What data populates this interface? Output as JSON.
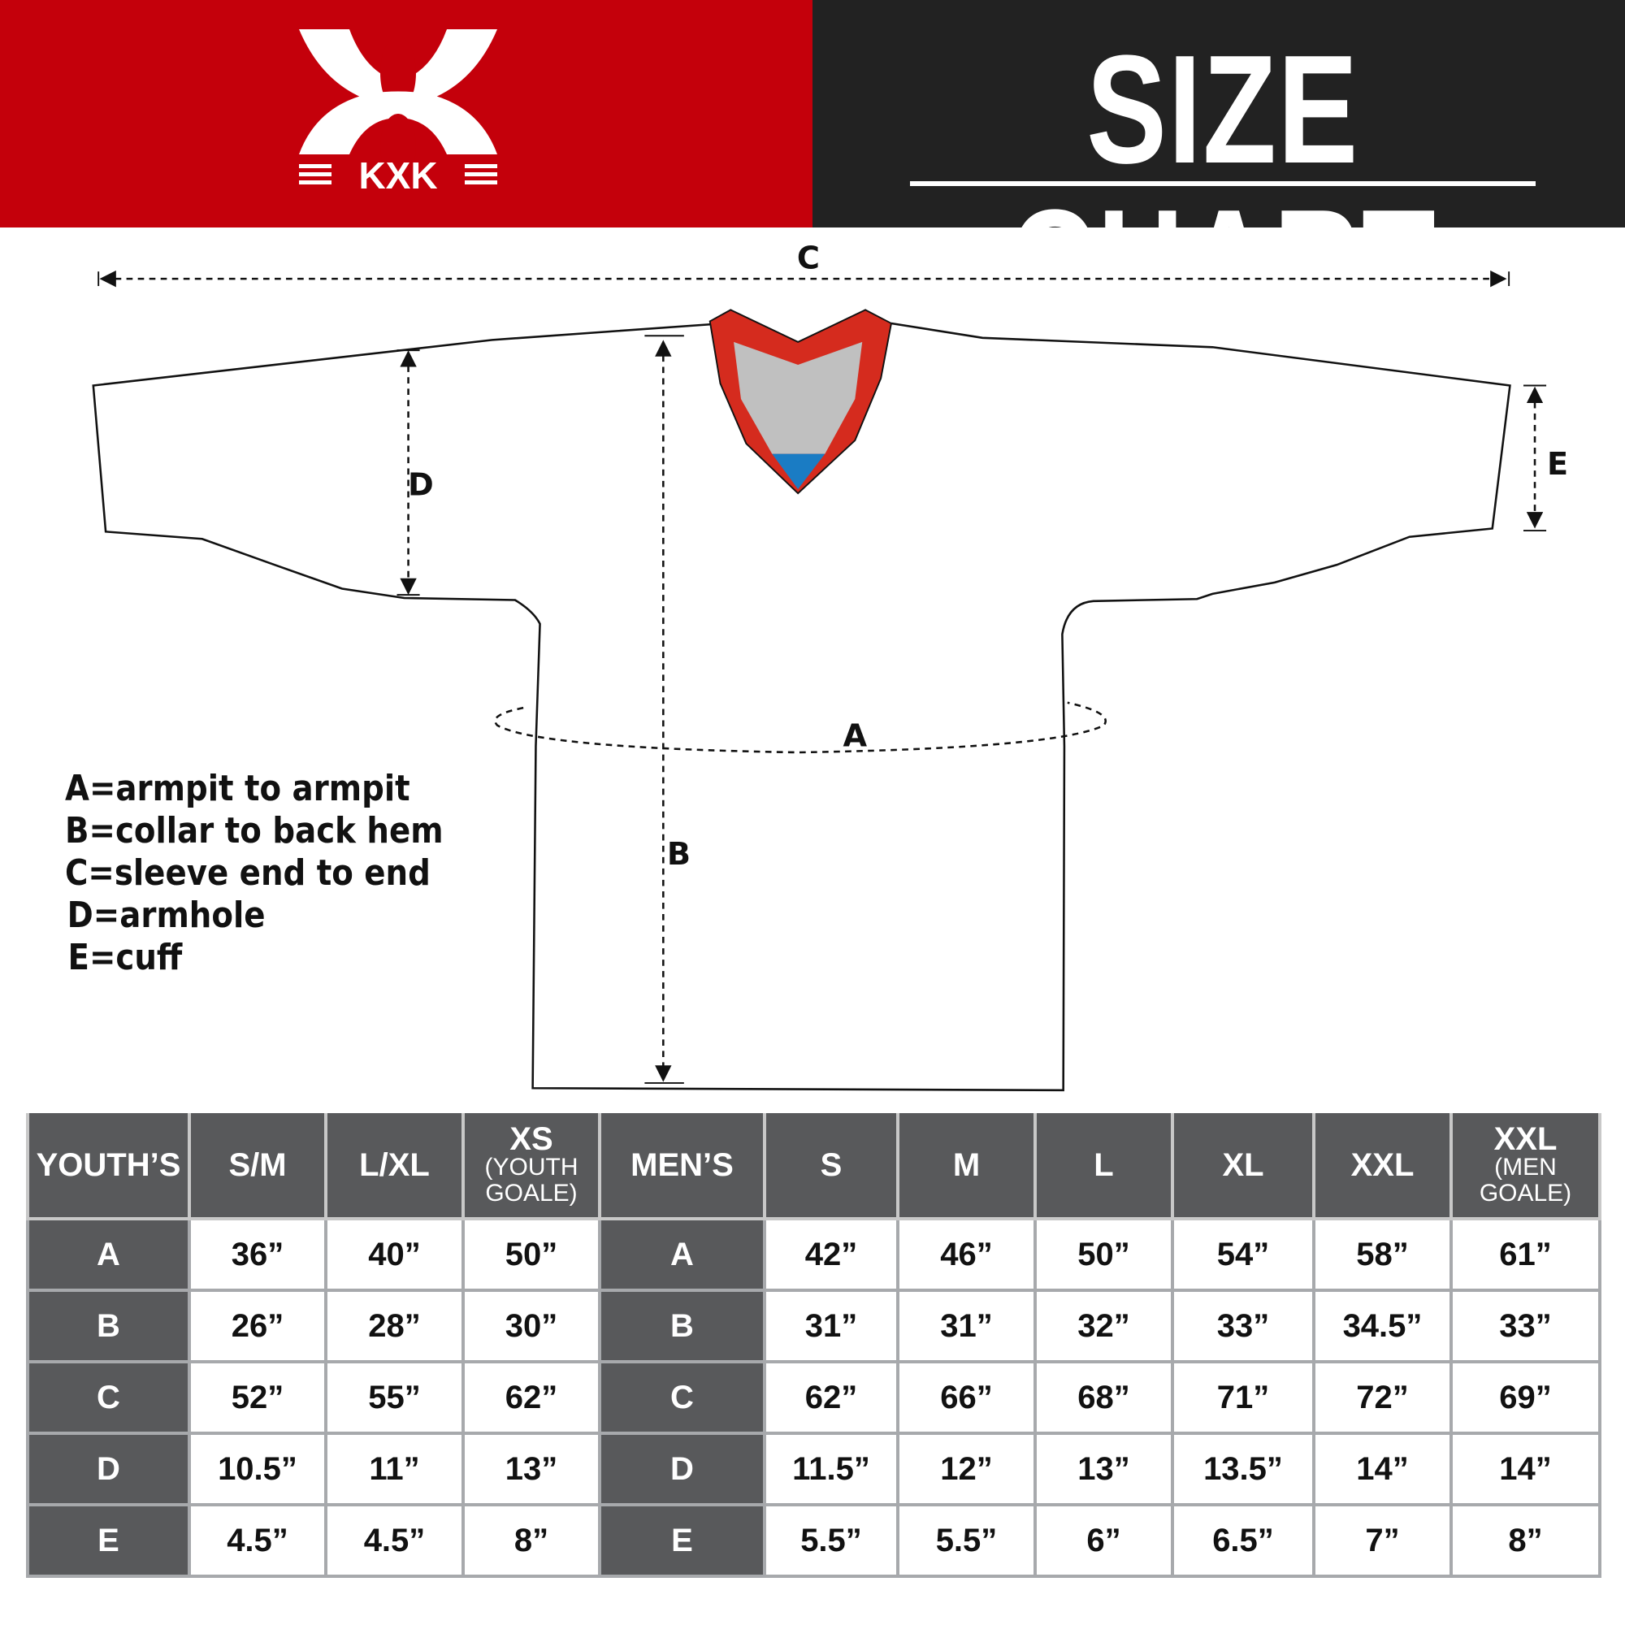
{
  "header": {
    "title": "SIZE CHART",
    "logo_text": "KXK",
    "colors": {
      "brand_red": "#c4000b",
      "dark": "#222222",
      "table_header": "#58595b",
      "collar_red": "#d52b1e",
      "collar_gray": "#c0c0c0",
      "collar_blue": "#1a7cc4"
    }
  },
  "diagram": {
    "labels": {
      "a": "A",
      "b": "B",
      "c": "C",
      "d": "D",
      "e": "E"
    },
    "legend": [
      "A=armpit to armpit",
      "B=collar to back hem",
      "C=sleeve end to end",
      "D=armhole",
      "E=cuff"
    ]
  },
  "table": {
    "headers": [
      {
        "main": "YOUTH’S",
        "sub": ""
      },
      {
        "main": "S/M",
        "sub": ""
      },
      {
        "main": "L/XL",
        "sub": ""
      },
      {
        "main": "XS",
        "sub": "(YOUTH GOALE)"
      },
      {
        "main": "MEN’S",
        "sub": ""
      },
      {
        "main": "S",
        "sub": ""
      },
      {
        "main": "M",
        "sub": ""
      },
      {
        "main": "L",
        "sub": ""
      },
      {
        "main": "XL",
        "sub": ""
      },
      {
        "main": "XXL",
        "sub": ""
      },
      {
        "main": "XXL",
        "sub": "(MEN GOALE)"
      }
    ],
    "rows": [
      {
        "label": "A",
        "youth": [
          "36”",
          "40”",
          "50”"
        ],
        "men": [
          "42”",
          "46”",
          "50”",
          "54”",
          "58”",
          "61”"
        ]
      },
      {
        "label": "B",
        "youth": [
          "26”",
          "28”",
          "30”"
        ],
        "men": [
          "31”",
          "31”",
          "32”",
          "33”",
          "34.5”",
          "33”"
        ]
      },
      {
        "label": "C",
        "youth": [
          "52”",
          "55”",
          "62”"
        ],
        "men": [
          "62”",
          "66”",
          "68”",
          "71”",
          "72”",
          "69”"
        ]
      },
      {
        "label": "D",
        "youth": [
          "10.5”",
          "11”",
          "13”"
        ],
        "men": [
          "11.5”",
          "12”",
          "13”",
          "13.5”",
          "14”",
          "14”"
        ]
      },
      {
        "label": "E",
        "youth": [
          "4.5”",
          "4.5”",
          "8”"
        ],
        "men": [
          "5.5”",
          "5.5”",
          "6”",
          "6.5”",
          "7”",
          "8”"
        ]
      }
    ]
  }
}
